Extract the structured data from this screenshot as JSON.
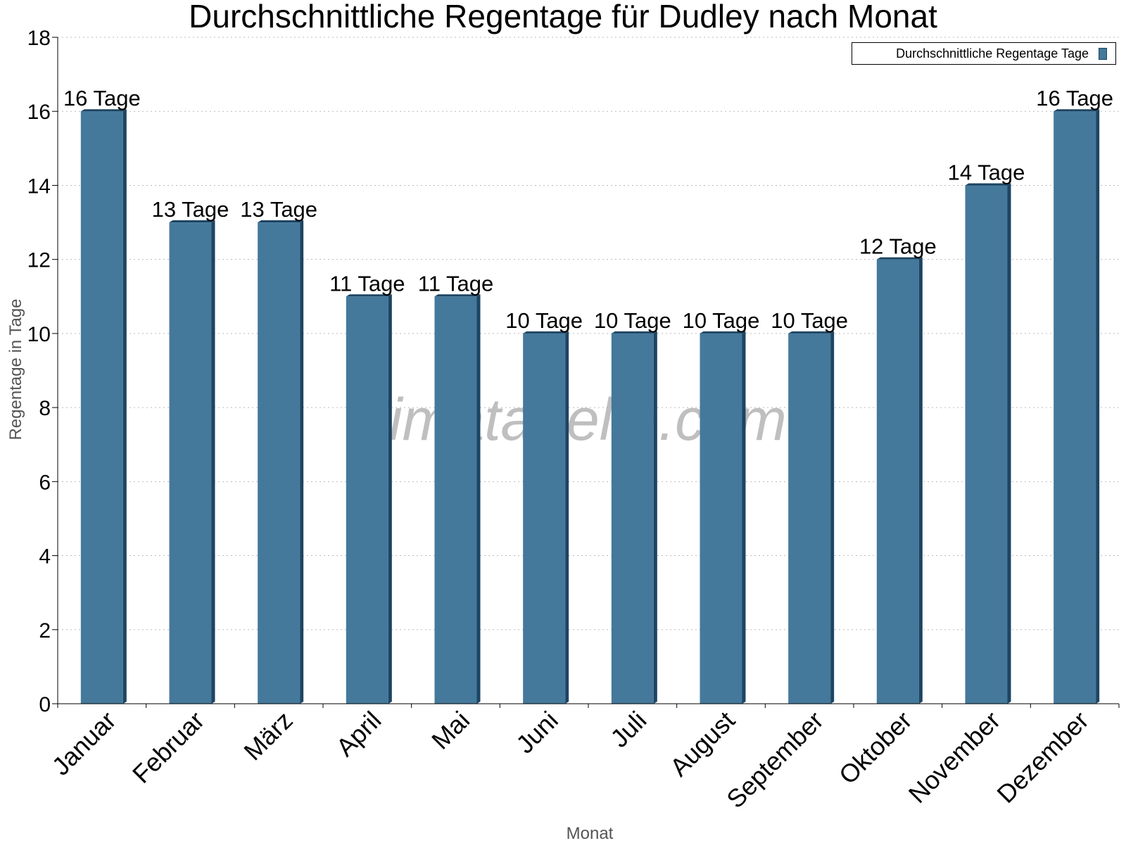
{
  "chart_data": {
    "type": "bar",
    "title": "Durchschnittliche Regentage für Dudley nach Monat",
    "xlabel": "Monat",
    "ylabel": "Regentage in Tage",
    "categories": [
      "Januar",
      "Februar",
      "März",
      "April",
      "Mai",
      "Juni",
      "Juli",
      "August",
      "September",
      "Oktober",
      "November",
      "Dezember"
    ],
    "series": [
      {
        "name": "Durchschnittliche Regentage Tage",
        "values": [
          16,
          13,
          13,
          11,
          11,
          10,
          10,
          10,
          10,
          12,
          14,
          16
        ],
        "data_labels": [
          "16 Tage",
          "13 Tage",
          "13 Tage",
          "11 Tage",
          "11 Tage",
          "10 Tage",
          "10 Tage",
          "10 Tage",
          "10 Tage",
          "12 Tage",
          "14 Tage",
          "16 Tage"
        ]
      }
    ],
    "ylim": [
      0,
      18
    ],
    "yticks": [
      0,
      2,
      4,
      6,
      8,
      10,
      12,
      14,
      16,
      18
    ],
    "grid": true,
    "legend_position": "top-right",
    "colors": {
      "bar": "#44799b",
      "bar_side": "#1d4463",
      "grid": "#bbbbbb",
      "watermark": "#aaaaaa"
    }
  },
  "watermark": "klimatabelle.com"
}
